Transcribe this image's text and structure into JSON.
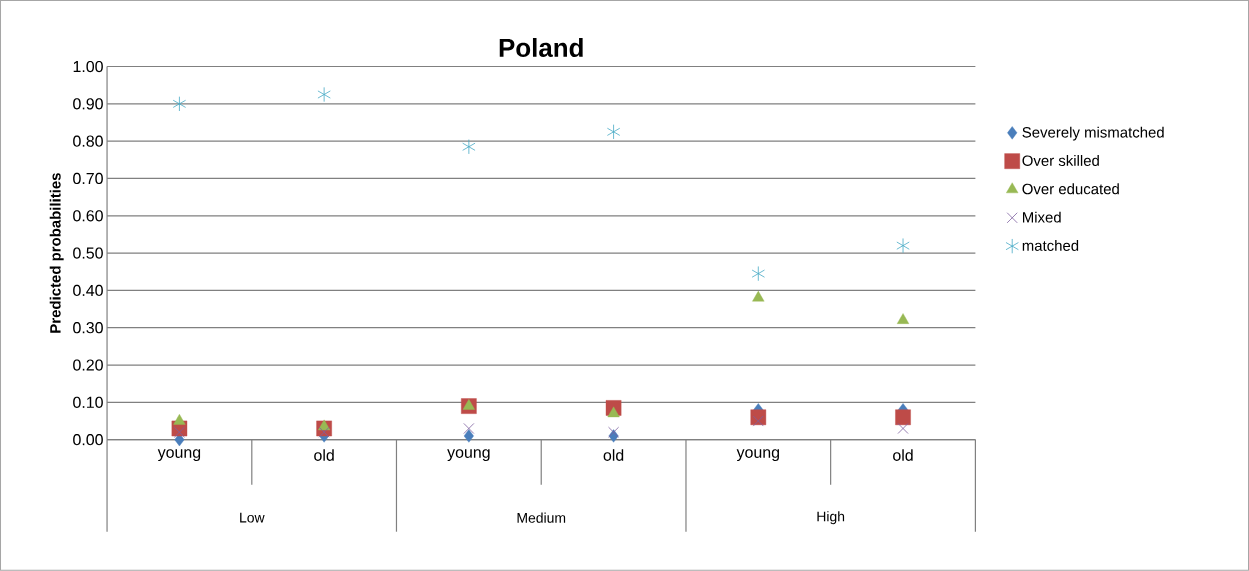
{
  "chart_data": {
    "type": "scatter",
    "title": "Poland",
    "ylabel": "Predicted probabilities",
    "categories": [
      "young",
      "old",
      "young",
      "old",
      "young",
      "old"
    ],
    "annotations": [
      "Low",
      "Medium",
      "High"
    ],
    "ylim": [
      0,
      1
    ],
    "yticks": [
      {
        "value": 0,
        "label": "0.00"
      },
      {
        "value": 0.1,
        "label": "0.10"
      },
      {
        "value": 0.2,
        "label": "0.20"
      },
      {
        "value": 0.3,
        "label": "0.30"
      },
      {
        "value": 0.4,
        "label": "0.40"
      },
      {
        "value": 0.5,
        "label": "0.50"
      },
      {
        "value": 0.6,
        "label": "0.60"
      },
      {
        "value": 0.7,
        "label": "0.70"
      },
      {
        "value": 0.8,
        "label": "0.80"
      },
      {
        "value": 0.9,
        "label": "0.90"
      },
      {
        "value": 1,
        "label": "1.00"
      }
    ],
    "grid": "y",
    "legend": "right",
    "series": [
      {
        "name": "Severely mismatched",
        "color": "#4a7ebb",
        "marker": "diamond",
        "values": [
          0.0,
          0.01,
          0.01,
          0.01,
          0.08,
          0.08
        ]
      },
      {
        "name": "Over skilled",
        "color": "#be4b48",
        "marker": "square",
        "values": [
          0.03,
          0.03,
          0.09,
          0.085,
          0.06,
          0.06
        ]
      },
      {
        "name": "Over educated",
        "color": "#98b954",
        "marker": "triangle",
        "values": [
          0.05,
          0.035,
          0.09,
          0.07,
          0.38,
          0.32
        ]
      },
      {
        "name": "Mixed",
        "color": "#7d60a0",
        "marker": "cross",
        "values": [
          0.02,
          0.02,
          0.03,
          0.02,
          0.05,
          0.03
        ]
      },
      {
        "name": "matched",
        "color": "#46aac5",
        "values": [
          0.9,
          0.925,
          0.785,
          0.825,
          0.445,
          0.52
        ]
      }
    ]
  }
}
